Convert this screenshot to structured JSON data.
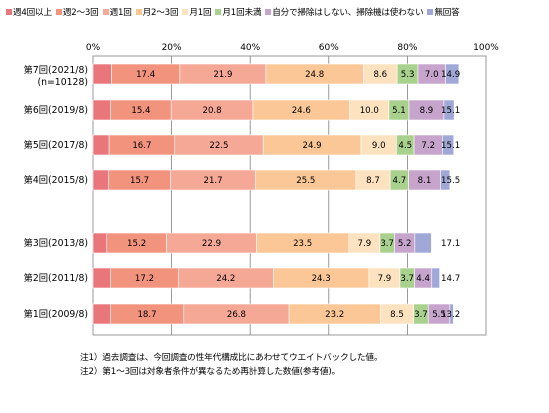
{
  "chart_data": {
    "type": "bar",
    "orientation": "horizontal",
    "stacked": true,
    "percent": true,
    "xlim": [
      0,
      100
    ],
    "x_ticks": [
      "0%",
      "20%",
      "40%",
      "60%",
      "80%",
      "100%"
    ],
    "categories": [
      {
        "label": "第7回(2021/8)",
        "sublabel": "(n=10128)"
      },
      {
        "label": "第6回(2019/8)"
      },
      {
        "label": "第5回(2017/8)"
      },
      {
        "label": "第4回(2015/8)"
      },
      {
        "label": "第3回(2013/8)"
      },
      {
        "label": "第2回(2011/8)"
      },
      {
        "label": "第1回(2009/8)"
      }
    ],
    "series": [
      {
        "name": "週4回以上",
        "color": "#E8767A",
        "values": [
          4.7,
          4.5,
          4.1,
          4.0,
          3.5,
          4.5,
          4.4
        ],
        "labels": [
          "",
          "",
          "",
          "",
          "",
          "",
          ""
        ]
      },
      {
        "name": "週2～3回",
        "color": "#F2937E",
        "values": [
          17.4,
          15.4,
          16.7,
          15.7,
          15.2,
          17.2,
          18.7
        ],
        "labels": [
          "17.4",
          "15.4",
          "16.7",
          "15.7",
          "15.2",
          "17.2",
          "18.7"
        ]
      },
      {
        "name": "週1回",
        "color": "#F4A895",
        "values": [
          21.9,
          20.8,
          22.5,
          21.7,
          22.9,
          24.2,
          26.8
        ],
        "labels": [
          "21.9",
          "20.8",
          "22.5",
          "21.7",
          "22.9",
          "24.2",
          "26.8"
        ]
      },
      {
        "name": "月2～3回",
        "color": "#FBC796",
        "values": [
          24.8,
          24.6,
          24.9,
          25.5,
          23.5,
          24.3,
          23.2
        ],
        "labels": [
          "24.8",
          "24.6",
          "24.9",
          "25.5",
          "23.5",
          "24.3",
          "23.2"
        ]
      },
      {
        "name": "月1回",
        "color": "#FCE2BE",
        "values": [
          8.6,
          10.0,
          9.0,
          8.7,
          7.9,
          7.9,
          8.5
        ],
        "labels": [
          "8.6",
          "10.0",
          "9.0",
          "8.7",
          "7.9",
          "7.9",
          "8.5"
        ]
      },
      {
        "name": "月1回未満",
        "color": "#A8D18D",
        "values": [
          5.3,
          5.1,
          4.5,
          4.7,
          3.7,
          3.7,
          3.7
        ],
        "labels": [
          "5.3",
          "5.1",
          "4.5",
          "4.7",
          "3.7",
          "3.7",
          "3.7"
        ]
      },
      {
        "name": "自分で掃除はしない、掃除機は使わない",
        "color": "#C6A4CC",
        "values": [
          7.0,
          8.9,
          7.2,
          8.1,
          5.2,
          4.4,
          5.5
        ],
        "labels": [
          "7.0",
          "8.9",
          "7.2",
          "8.1",
          "5.2",
          "4.4",
          "5.5"
        ]
      },
      {
        "name": "無回答",
        "color": "#9FA8D6",
        "values": [
          3.4,
          2.6,
          2.9,
          2.4,
          4.2,
          2.0,
          0.9
        ],
        "labels": [
          "",
          "",
          "",
          "",
          "",
          "",
          ""
        ]
      }
    ],
    "totals_label_series_note": "",
    "tail_labels": [
      "14.9",
      "15.1",
      "15.1",
      "15.5",
      "17.1",
      "14.7",
      "13.2"
    ]
  },
  "notes": [
    "注1）過去調査は、今回調査の性年代構成比にあわせてウエイトバックした値。",
    "注2）第1～3回は対象者条件が異なるため再計算した数値(参考値)。"
  ]
}
